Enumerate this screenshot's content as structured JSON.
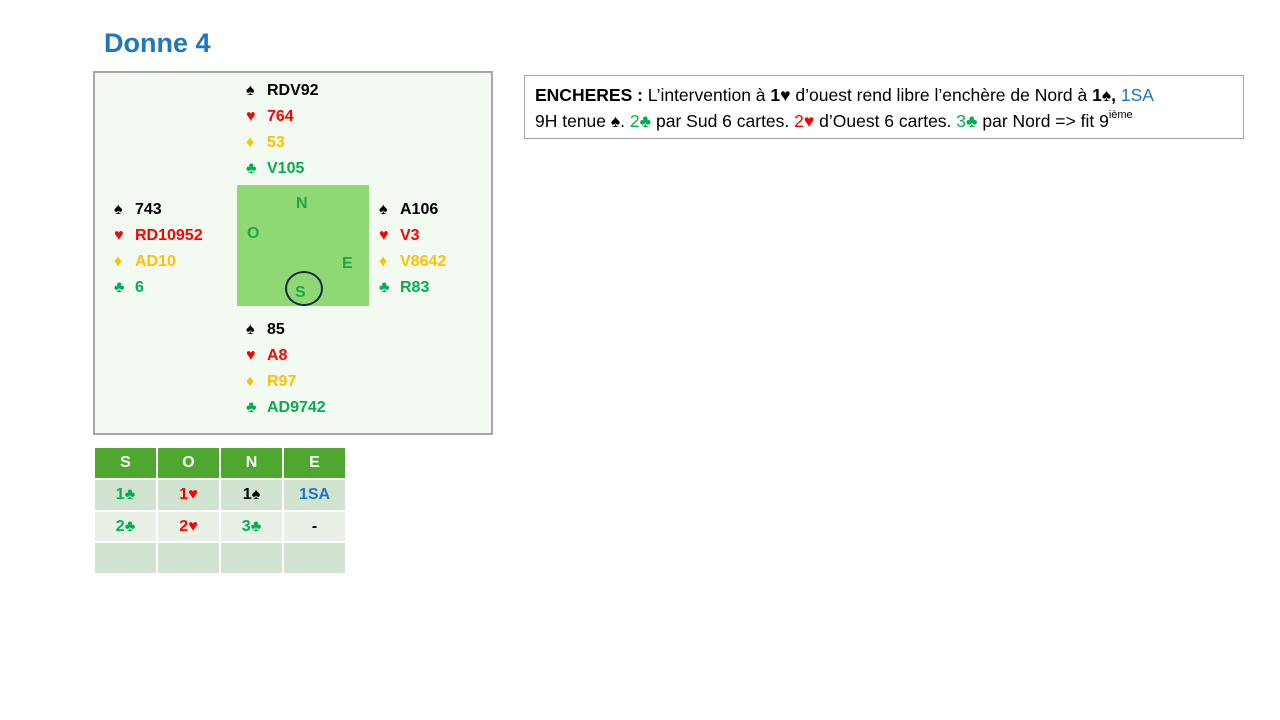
{
  "title": "Donne 4",
  "hands": {
    "north": {
      "spades": "RDV92",
      "hearts": "764",
      "diamonds": "53",
      "clubs": "V105"
    },
    "west": {
      "spades": "743",
      "hearts": "RD10952",
      "diamonds": "AD10",
      "clubs": "6"
    },
    "east": {
      "spades": "A106",
      "hearts": "V3",
      "diamonds": "V8642",
      "clubs": "R83"
    },
    "south": {
      "spades": "85",
      "hearts": "A8",
      "diamonds": "R97",
      "clubs": "AD9742"
    }
  },
  "suits": {
    "spades": "♠",
    "hearts": "♥",
    "diamonds": "♦",
    "clubs": "♣"
  },
  "colors": {
    "spades": "#000000",
    "hearts": "#ff0000",
    "diamonds": "#ffc000",
    "clubs": "#00b050",
    "blue": "#1f74c4",
    "header": "#4ea72e"
  },
  "compass": {
    "n": "N",
    "o": "O",
    "e": "E",
    "s": "S",
    "dealer": "S"
  },
  "encheres": {
    "label": "ENCHERES :",
    "t1": " L’intervention à ",
    "b1": "1♥",
    " t2": "",
    "t3": " d’ouest rend libre l’enchère de Nord à ",
    "b2": "1♠,",
    "sa": " 1SA",
    "t4": "9H tenue ♠. ",
    "c2": "2♣",
    "t5": " par Sud 6 cartes. ",
    "h2": "2♥",
    "t6": " d’Ouest 6 cartes. ",
    "c3": "3♣",
    "t7": " par Nord => fit 9",
    "sup": "ième"
  },
  "bidding": {
    "headers": [
      "S",
      "O",
      "N",
      "E"
    ],
    "rows": [
      [
        "1♣",
        "1♥",
        "1♠",
        "1SA"
      ],
      [
        "2♣",
        "2♥",
        "3♣",
        "-"
      ],
      [
        "",
        "",
        "",
        ""
      ]
    ]
  }
}
